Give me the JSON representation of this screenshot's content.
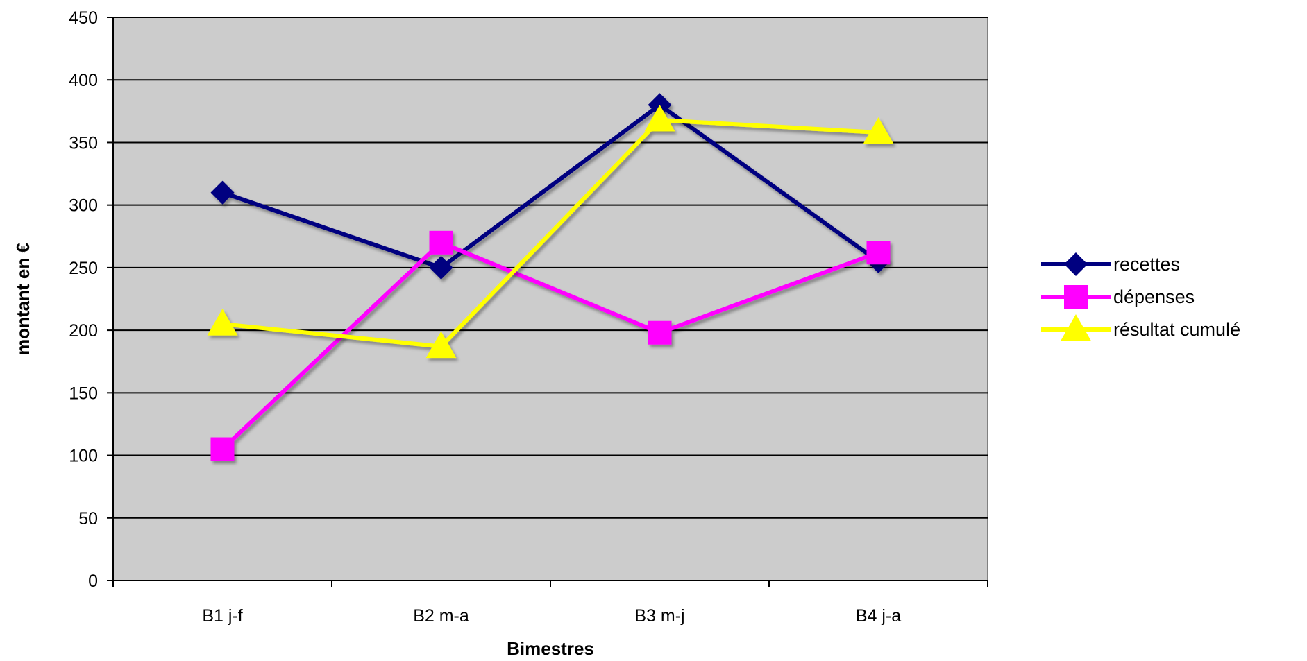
{
  "chart_data": {
    "type": "line",
    "title": "",
    "xlabel": "Bimestres",
    "ylabel": "montant en €",
    "categories": [
      "B1 j-f",
      "B2 m-a",
      "B3 m-j",
      "B4 j-a"
    ],
    "ylim": [
      0,
      450
    ],
    "yticks": [
      0,
      50,
      100,
      150,
      200,
      250,
      300,
      350,
      400,
      450
    ],
    "grid": true,
    "legend": "right",
    "background_color": "#CCCCCC",
    "series": [
      {
        "name": "recettes",
        "values": [
          310,
          250,
          380,
          255
        ],
        "color": "#000080",
        "marker": "diamond"
      },
      {
        "name": "dépenses",
        "values": [
          105,
          270,
          198,
          262
        ],
        "color": "#FF00FF",
        "marker": "square"
      },
      {
        "name": "résultat cumulé",
        "values": [
          205,
          187,
          368,
          358
        ],
        "color": "#FFFF00",
        "marker": "triangle"
      }
    ]
  }
}
